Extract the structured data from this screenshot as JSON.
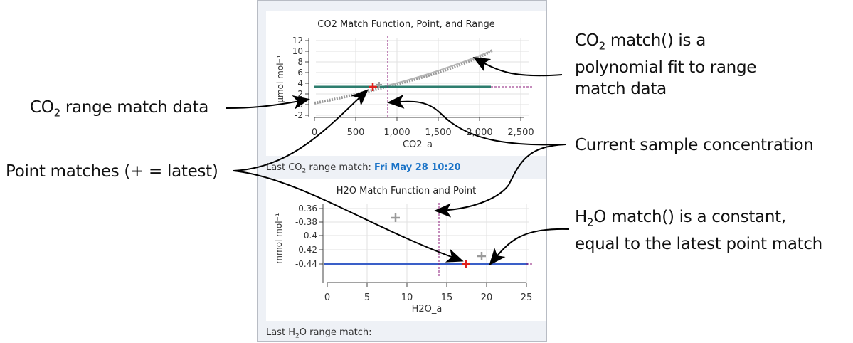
{
  "co2_panel": {
    "title": "CO2 Match Function, Point, and Range",
    "ylabel": "µmol mol⁻¹",
    "xlabel": "CO2_a",
    "yticks": [
      "12",
      "10",
      "8",
      "6",
      "4",
      "2",
      "0",
      "-2"
    ],
    "xticks": [
      "0",
      "500",
      "1,000",
      "1,500",
      "2,000",
      "2,500"
    ]
  },
  "co2_status": {
    "prefix": "Last CO",
    "sub": "2",
    "suffix": " range match: ",
    "date": "Fri May 28 10:20"
  },
  "h2o_panel": {
    "title": "H2O Match Function and Point",
    "ylabel": "mmol mol⁻¹",
    "xlabel": "H2O_a",
    "yticks": [
      "-0.36",
      "-0.38",
      "-0.4",
      "-0.42",
      "-0.44"
    ],
    "xticks": [
      "0",
      "5",
      "10",
      "15",
      "20",
      "25"
    ]
  },
  "h2o_status": {
    "prefix": "Last H",
    "sub": "2",
    "suffix": "O range match:"
  },
  "annotations": {
    "co2_range": {
      "pre": "CO",
      "sub": "2",
      "post": " range match data"
    },
    "point_matches": "Point matches (+ = latest)",
    "co2_match": {
      "pre": "CO",
      "sub": "2",
      "line1_post": "  match() is a",
      "line2": "polynomial fit to range",
      "line3": "match data"
    },
    "current_sample": "Current sample concentration",
    "h2o_match": {
      "pre": "H",
      "sub": "2",
      "line1_post": "O match() is a constant,",
      "line2": "equal to the latest point match"
    }
  },
  "colors": {
    "accent": "#1a73c7",
    "latest_point": "#e0201c",
    "match_line_co2": "#2e7d6e",
    "match_line_h2o": "#3a5fc8",
    "sample_line": "#8b1a7a",
    "range_data": "#9a9a9a"
  }
}
